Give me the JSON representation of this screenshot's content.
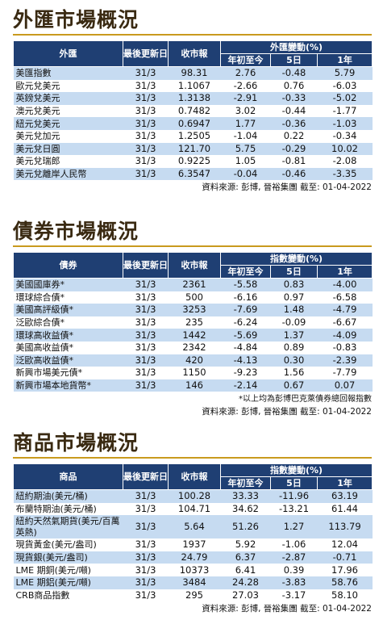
{
  "fx": {
    "title": "外匯市場概況",
    "headers": {
      "name": "外匯",
      "last_update": "最後更新日",
      "close": "收市報",
      "change_group": "外匯變動(%)",
      "ytd": "年初至今",
      "d5": "5日",
      "y1": "1年"
    },
    "rows": [
      {
        "name": "美匯指數",
        "date": "31/3",
        "close": "98.31",
        "ytd": "2.76",
        "d5": "-0.48",
        "y1": "5.79"
      },
      {
        "name": "歐元兌美元",
        "date": "31/3",
        "close": "1.1067",
        "ytd": "-2.66",
        "d5": "0.76",
        "y1": "-6.03"
      },
      {
        "name": "英鎊兌美元",
        "date": "31/3",
        "close": "1.3138",
        "ytd": "-2.91",
        "d5": "-0.33",
        "y1": "-5.02"
      },
      {
        "name": "澳元兌美元",
        "date": "31/3",
        "close": "0.7482",
        "ytd": "3.02",
        "d5": "-0.44",
        "y1": "-1.77"
      },
      {
        "name": "紐元兌美元",
        "date": "31/3",
        "close": "0.6947",
        "ytd": "1.77",
        "d5": "-0.36",
        "y1": "-1.03"
      },
      {
        "name": "美元兌加元",
        "date": "31/3",
        "close": "1.2505",
        "ytd": "-1.04",
        "d5": "0.22",
        "y1": "-0.34"
      },
      {
        "name": "美元兌日圓",
        "date": "31/3",
        "close": "121.70",
        "ytd": "5.75",
        "d5": "-0.29",
        "y1": "10.02"
      },
      {
        "name": "美元兌瑞郎",
        "date": "31/3",
        "close": "0.9225",
        "ytd": "1.05",
        "d5": "-0.81",
        "y1": "-2.08"
      },
      {
        "name": "美元兌離岸人民幣",
        "date": "31/3",
        "close": "6.3547",
        "ytd": "-0.04",
        "d5": "-0.46",
        "y1": "-3.35"
      }
    ],
    "source": "資料來源: 彭博, 晉裕集團 截至: 01-04-2022"
  },
  "bonds": {
    "title": "債券市場概況",
    "headers": {
      "name": "債券",
      "last_update": "最後更新日",
      "close": "收市報",
      "change_group": "指數變動(%)",
      "ytd": "年初至今",
      "d5": "5日",
      "y1": "1年"
    },
    "rows": [
      {
        "name": "美國國庫券*",
        "date": "31/3",
        "close": "2361",
        "ytd": "-5.58",
        "d5": "0.83",
        "y1": "-4.00"
      },
      {
        "name": "環球綜合債*",
        "date": "31/3",
        "close": "500",
        "ytd": "-6.16",
        "d5": "0.97",
        "y1": "-6.58"
      },
      {
        "name": "美國高評級債*",
        "date": "31/3",
        "close": "3253",
        "ytd": "-7.69",
        "d5": "1.48",
        "y1": "-4.79"
      },
      {
        "name": "泛歐綜合債*",
        "date": "31/3",
        "close": "235",
        "ytd": "-6.24",
        "d5": "-0.09",
        "y1": "-6.67"
      },
      {
        "name": "環球高收益債*",
        "date": "31/3",
        "close": "1442",
        "ytd": "-5.69",
        "d5": "1.37",
        "y1": "-4.09"
      },
      {
        "name": "美國高收益債*",
        "date": "31/3",
        "close": "2342",
        "ytd": "-4.84",
        "d5": "0.89",
        "y1": "-0.83"
      },
      {
        "name": "泛歐高收益債*",
        "date": "31/3",
        "close": "420",
        "ytd": "-4.13",
        "d5": "0.30",
        "y1": "-2.39"
      },
      {
        "name": "新興市場美元債*",
        "date": "31/3",
        "close": "1150",
        "ytd": "-9.23",
        "d5": "1.56",
        "y1": "-7.79"
      },
      {
        "name": "新興市場本地貨幣*",
        "date": "31/3",
        "close": "146",
        "ytd": "-2.14",
        "d5": "0.67",
        "y1": "0.07"
      }
    ],
    "note": "*以上均為彭博巴克萊債券總回報指數",
    "source": "資料來源: 彭博, 晉裕集團 截至: 01-04-2022"
  },
  "commodities": {
    "title": "商品市場概況",
    "headers": {
      "name": "商品",
      "last_update": "最後更新日",
      "close": "收市報",
      "change_group": "指數變動(%)",
      "ytd": "年初至今",
      "d5": "5日",
      "y1": "1年"
    },
    "rows": [
      {
        "name": "紐約期油(美元/桶)",
        "date": "31/3",
        "close": "100.28",
        "ytd": "33.33",
        "d5": "-11.96",
        "y1": "63.19"
      },
      {
        "name": "布蘭特期油(美元/桶)",
        "date": "31/3",
        "close": "104.71",
        "ytd": "34.62",
        "d5": "-13.21",
        "y1": "61.44"
      },
      {
        "name": "紐約天然氣期貨(美元/百萬英熱)",
        "date": "31/3",
        "close": "5.64",
        "ytd": "51.26",
        "d5": "1.27",
        "y1": "113.79"
      },
      {
        "name": "現貨黃金(美元/盎司)",
        "date": "31/3",
        "close": "1937",
        "ytd": "5.92",
        "d5": "-1.06",
        "y1": "12.04"
      },
      {
        "name": "現貨銀(美元/盎司)",
        "date": "31/3",
        "close": "24.79",
        "ytd": "6.37",
        "d5": "-2.87",
        "y1": "-0.71"
      },
      {
        "name": "LME 期銅(美元/噸)",
        "date": "31/3",
        "close": "10373",
        "ytd": "6.41",
        "d5": "0.39",
        "y1": "17.96"
      },
      {
        "name": "LME 期鋁(美元/噸)",
        "date": "31/3",
        "close": "3484",
        "ytd": "24.28",
        "d5": "-3.83",
        "y1": "58.76"
      },
      {
        "name": "CRB商品指數",
        "date": "31/3",
        "close": "295",
        "ytd": "27.03",
        "d5": "-3.17",
        "y1": "58.10"
      }
    ],
    "source": "資料來源: 彭博, 晉裕集團 截至: 01-04-2022"
  }
}
